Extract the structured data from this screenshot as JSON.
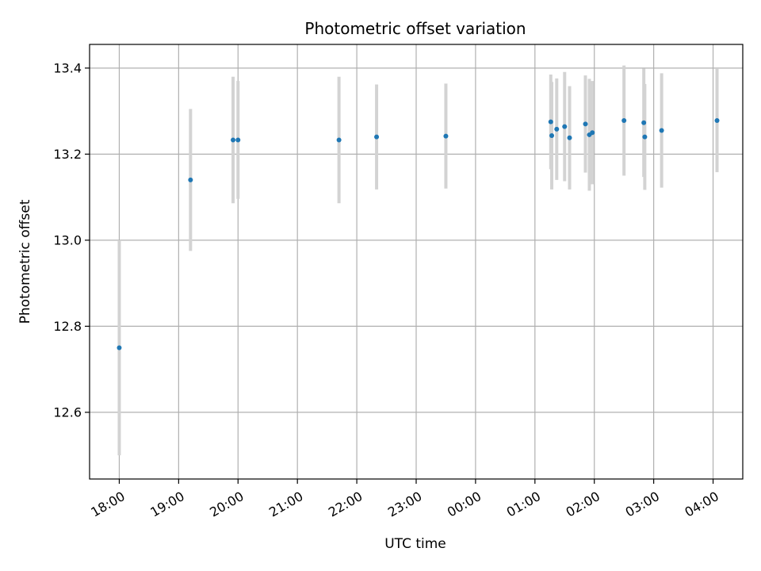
{
  "chart_data": {
    "type": "scatter",
    "title": "Photometric offset variation",
    "xlabel": "UTC time",
    "ylabel": "Photometric offset",
    "xlim": [
      "17:30",
      "04:30"
    ],
    "ylim": [
      12.445,
      13.455
    ],
    "x_ticks": [
      "18:00",
      "19:00",
      "20:00",
      "21:00",
      "22:00",
      "23:00",
      "00:00",
      "01:00",
      "02:00",
      "03:00",
      "04:00"
    ],
    "y_ticks": [
      "12.6",
      "12.8",
      "13.0",
      "13.2",
      "13.4"
    ],
    "grid": true,
    "colors": {
      "point": "#1f77b4",
      "errorbar": "#d3d3d3",
      "grid": "#b0b0b0",
      "axes": "#000000"
    },
    "points": [
      {
        "t": "18:00",
        "y": 12.75,
        "err": 0.25
      },
      {
        "t": "19:12",
        "y": 13.14,
        "err": 0.165
      },
      {
        "t": "19:55",
        "y": 13.233,
        "err": 0.147
      },
      {
        "t": "20:00",
        "y": 13.233,
        "err": 0.137
      },
      {
        "t": "21:42",
        "y": 13.233,
        "err": 0.147
      },
      {
        "t": "22:20",
        "y": 13.24,
        "err": 0.122
      },
      {
        "t": "23:30",
        "y": 13.242,
        "err": 0.122
      },
      {
        "t": "01:16",
        "y": 13.275,
        "err": 0.11
      },
      {
        "t": "01:17",
        "y": 13.243,
        "err": 0.125
      },
      {
        "t": "01:22",
        "y": 13.258,
        "err": 0.118
      },
      {
        "t": "01:30",
        "y": 13.264,
        "err": 0.127
      },
      {
        "t": "01:35",
        "y": 13.238,
        "err": 0.12
      },
      {
        "t": "01:51",
        "y": 13.27,
        "err": 0.113
      },
      {
        "t": "01:55",
        "y": 13.245,
        "err": 0.13
      },
      {
        "t": "01:58",
        "y": 13.25,
        "err": 0.12
      },
      {
        "t": "02:30",
        "y": 13.278,
        "err": 0.128
      },
      {
        "t": "02:50",
        "y": 13.273,
        "err": 0.126
      },
      {
        "t": "02:51",
        "y": 13.24,
        "err": 0.123
      },
      {
        "t": "03:08",
        "y": 13.255,
        "err": 0.133
      },
      {
        "t": "04:04",
        "y": 13.278,
        "err": 0.12
      }
    ]
  }
}
